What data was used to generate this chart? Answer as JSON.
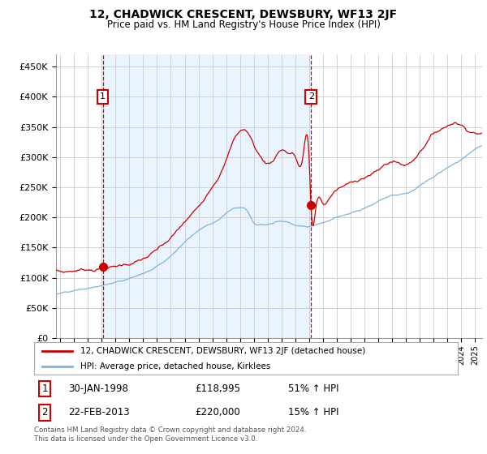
{
  "title": "12, CHADWICK CRESCENT, DEWSBURY, WF13 2JF",
  "subtitle": "Price paid vs. HM Land Registry's House Price Index (HPI)",
  "ylabel_ticks": [
    "£0",
    "£50K",
    "£100K",
    "£150K",
    "£200K",
    "£250K",
    "£300K",
    "£350K",
    "£400K",
    "£450K"
  ],
  "ytick_values": [
    0,
    50000,
    100000,
    150000,
    200000,
    250000,
    300000,
    350000,
    400000,
    450000
  ],
  "ylim": [
    0,
    470000
  ],
  "xlim_start": 1994.7,
  "xlim_end": 2025.5,
  "sale1_date": 1998.08,
  "sale1_price": 118995,
  "sale2_date": 2013.14,
  "sale2_price": 220000,
  "property_line_color": "#cc0000",
  "hpi_line_color": "#7eb4d8",
  "vline_color": "#cc0000",
  "grid_color": "#cccccc",
  "shade_color": "#ddeeff",
  "label_box_color": "#cc0000",
  "legend_label1": "12, CHADWICK CRESCENT, DEWSBURY, WF13 2JF (detached house)",
  "legend_label2": "HPI: Average price, detached house, Kirklees",
  "footer": "Contains HM Land Registry data © Crown copyright and database right 2024.\nThis data is licensed under the Open Government Licence v3.0.",
  "background_color": "#ffffff"
}
